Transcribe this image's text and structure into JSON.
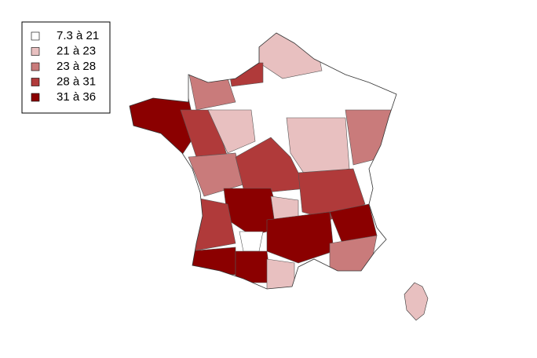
{
  "legend": {
    "items": [
      {
        "label": "7.3 à 21",
        "color": "#ffffff"
      },
      {
        "label": "21 à 23",
        "color": "#e8c0c0"
      },
      {
        "label": "23 à 28",
        "color": "#c97b7b"
      },
      {
        "label": "28 à 31",
        "color": "#b03a3a"
      },
      {
        "label": "31 à 36",
        "color": "#8b0000"
      }
    ]
  }
}
